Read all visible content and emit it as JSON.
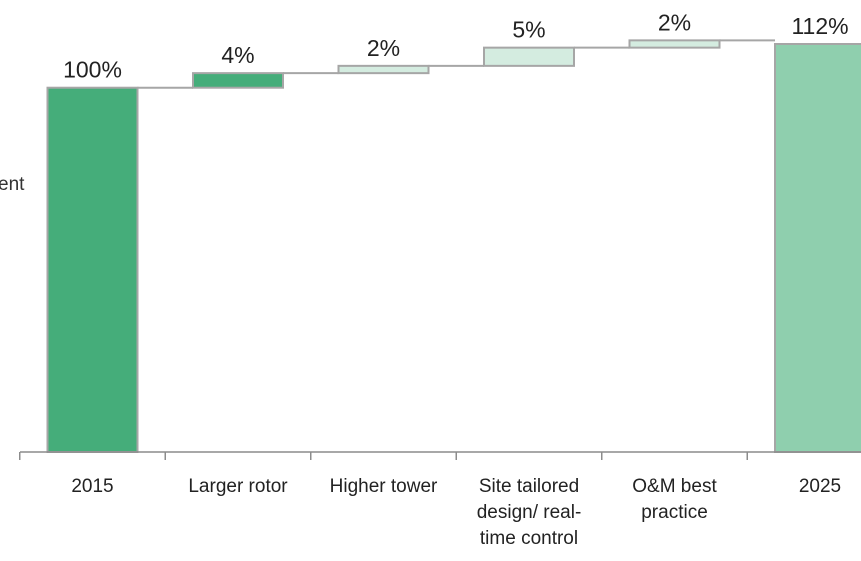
{
  "ylabel_fragment": "ent",
  "chart_data": {
    "type": "bar",
    "subtype": "waterfall",
    "title": "",
    "xlabel": "",
    "ylabel": "",
    "categories": [
      "2015",
      "Larger rotor",
      "Higher tower",
      "Site tailored design/ real-time control",
      "O&M best practice",
      "2025"
    ],
    "category_lines": [
      [
        "2015"
      ],
      [
        "Larger rotor"
      ],
      [
        "Higher tower"
      ],
      [
        "Site tailored",
        "design/ real-",
        "time control"
      ],
      [
        "O&M best",
        "practice"
      ],
      [
        "2025"
      ]
    ],
    "values": [
      100,
      4,
      2,
      5,
      2,
      112
    ],
    "bar_kinds": [
      "total",
      "delta",
      "delta",
      "delta",
      "delta",
      "total"
    ],
    "value_labels": [
      "100%",
      "4%",
      "2%",
      "5%",
      "2%",
      "112%"
    ],
    "ylim": [
      0,
      112
    ],
    "grid": false,
    "legend": "none",
    "colors": {
      "start_total": "#45ad7a",
      "end_total": "#8fcfae",
      "delta_strong": "#45ad7a",
      "delta_light": "#d4ece0",
      "outline": "#a6a6a6",
      "connector": "#a6a6a6",
      "axis": "#8c8c8c",
      "text": "#222222"
    }
  }
}
